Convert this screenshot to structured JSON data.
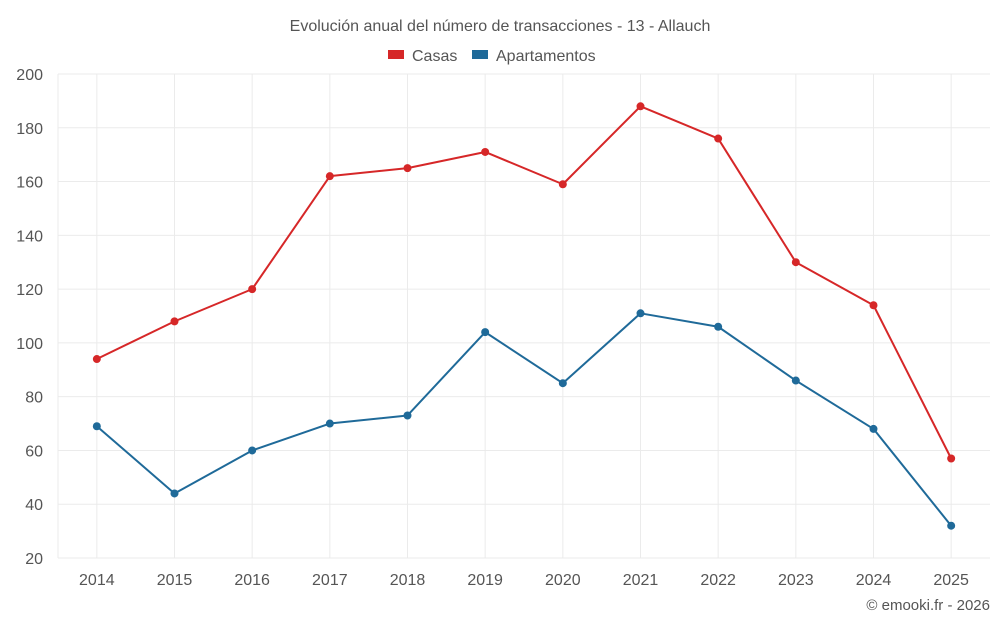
{
  "chart_data": {
    "type": "line",
    "title": "Evolución anual del número de transacciones - 13 - Allauch",
    "categories": [
      "2014",
      "2015",
      "2016",
      "2017",
      "2018",
      "2019",
      "2020",
      "2021",
      "2022",
      "2023",
      "2024",
      "2025"
    ],
    "series": [
      {
        "name": "Casas",
        "color": "#d62728",
        "values": [
          94,
          108,
          120,
          162,
          165,
          171,
          159,
          188,
          176,
          130,
          114,
          57
        ]
      },
      {
        "name": "Apartamentos",
        "color": "#1f6a99",
        "values": [
          69,
          44,
          60,
          70,
          73,
          104,
          85,
          111,
          106,
          86,
          68,
          32
        ]
      }
    ],
    "ylim": [
      20,
      200
    ],
    "yticks": [
      20,
      40,
      60,
      80,
      100,
      120,
      140,
      160,
      180,
      200
    ],
    "xlabel": "",
    "ylabel": "",
    "grid": true,
    "legend": "top-center"
  },
  "credit": "© emooki.fr - 2026"
}
